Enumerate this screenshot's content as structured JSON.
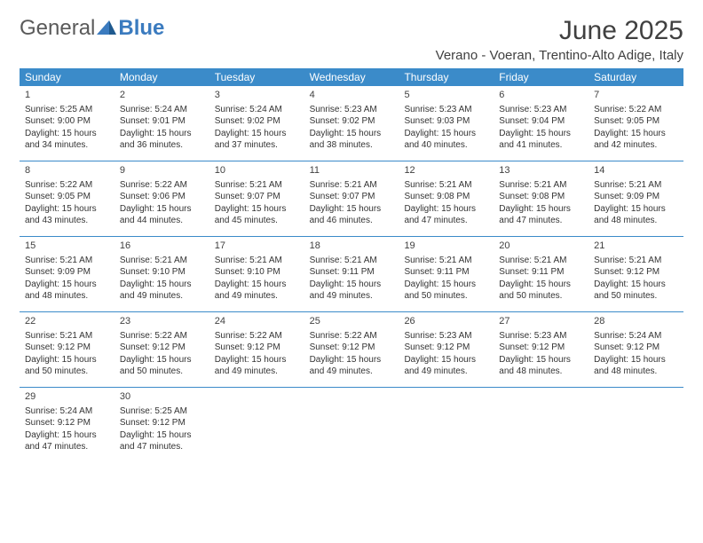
{
  "logo": {
    "general": "General",
    "blue": "Blue"
  },
  "title": "June 2025",
  "location": "Verano - Voeran, Trentino-Alto Adige, Italy",
  "colors": {
    "header_bg": "#3b8bc9",
    "header_text": "#ffffff",
    "week_border": "#3b8bc9",
    "body_text": "#333333",
    "title_text": "#404040",
    "logo_gray": "#5a5a5a",
    "logo_blue": "#3b7bbf",
    "page_bg": "#ffffff"
  },
  "fonts": {
    "title_size": 30,
    "location_size": 15,
    "day_header_size": 12,
    "day_num_size": 11,
    "cell_text_size": 10
  },
  "day_labels": [
    "Sunday",
    "Monday",
    "Tuesday",
    "Wednesday",
    "Thursday",
    "Friday",
    "Saturday"
  ],
  "weeks": [
    [
      {
        "n": "1",
        "sunrise": "Sunrise: 5:25 AM",
        "sunset": "Sunset: 9:00 PM",
        "day1": "Daylight: 15 hours",
        "day2": "and 34 minutes."
      },
      {
        "n": "2",
        "sunrise": "Sunrise: 5:24 AM",
        "sunset": "Sunset: 9:01 PM",
        "day1": "Daylight: 15 hours",
        "day2": "and 36 minutes."
      },
      {
        "n": "3",
        "sunrise": "Sunrise: 5:24 AM",
        "sunset": "Sunset: 9:02 PM",
        "day1": "Daylight: 15 hours",
        "day2": "and 37 minutes."
      },
      {
        "n": "4",
        "sunrise": "Sunrise: 5:23 AM",
        "sunset": "Sunset: 9:02 PM",
        "day1": "Daylight: 15 hours",
        "day2": "and 38 minutes."
      },
      {
        "n": "5",
        "sunrise": "Sunrise: 5:23 AM",
        "sunset": "Sunset: 9:03 PM",
        "day1": "Daylight: 15 hours",
        "day2": "and 40 minutes."
      },
      {
        "n": "6",
        "sunrise": "Sunrise: 5:23 AM",
        "sunset": "Sunset: 9:04 PM",
        "day1": "Daylight: 15 hours",
        "day2": "and 41 minutes."
      },
      {
        "n": "7",
        "sunrise": "Sunrise: 5:22 AM",
        "sunset": "Sunset: 9:05 PM",
        "day1": "Daylight: 15 hours",
        "day2": "and 42 minutes."
      }
    ],
    [
      {
        "n": "8",
        "sunrise": "Sunrise: 5:22 AM",
        "sunset": "Sunset: 9:05 PM",
        "day1": "Daylight: 15 hours",
        "day2": "and 43 minutes."
      },
      {
        "n": "9",
        "sunrise": "Sunrise: 5:22 AM",
        "sunset": "Sunset: 9:06 PM",
        "day1": "Daylight: 15 hours",
        "day2": "and 44 minutes."
      },
      {
        "n": "10",
        "sunrise": "Sunrise: 5:21 AM",
        "sunset": "Sunset: 9:07 PM",
        "day1": "Daylight: 15 hours",
        "day2": "and 45 minutes."
      },
      {
        "n": "11",
        "sunrise": "Sunrise: 5:21 AM",
        "sunset": "Sunset: 9:07 PM",
        "day1": "Daylight: 15 hours",
        "day2": "and 46 minutes."
      },
      {
        "n": "12",
        "sunrise": "Sunrise: 5:21 AM",
        "sunset": "Sunset: 9:08 PM",
        "day1": "Daylight: 15 hours",
        "day2": "and 47 minutes."
      },
      {
        "n": "13",
        "sunrise": "Sunrise: 5:21 AM",
        "sunset": "Sunset: 9:08 PM",
        "day1": "Daylight: 15 hours",
        "day2": "and 47 minutes."
      },
      {
        "n": "14",
        "sunrise": "Sunrise: 5:21 AM",
        "sunset": "Sunset: 9:09 PM",
        "day1": "Daylight: 15 hours",
        "day2": "and 48 minutes."
      }
    ],
    [
      {
        "n": "15",
        "sunrise": "Sunrise: 5:21 AM",
        "sunset": "Sunset: 9:09 PM",
        "day1": "Daylight: 15 hours",
        "day2": "and 48 minutes."
      },
      {
        "n": "16",
        "sunrise": "Sunrise: 5:21 AM",
        "sunset": "Sunset: 9:10 PM",
        "day1": "Daylight: 15 hours",
        "day2": "and 49 minutes."
      },
      {
        "n": "17",
        "sunrise": "Sunrise: 5:21 AM",
        "sunset": "Sunset: 9:10 PM",
        "day1": "Daylight: 15 hours",
        "day2": "and 49 minutes."
      },
      {
        "n": "18",
        "sunrise": "Sunrise: 5:21 AM",
        "sunset": "Sunset: 9:11 PM",
        "day1": "Daylight: 15 hours",
        "day2": "and 49 minutes."
      },
      {
        "n": "19",
        "sunrise": "Sunrise: 5:21 AM",
        "sunset": "Sunset: 9:11 PM",
        "day1": "Daylight: 15 hours",
        "day2": "and 50 minutes."
      },
      {
        "n": "20",
        "sunrise": "Sunrise: 5:21 AM",
        "sunset": "Sunset: 9:11 PM",
        "day1": "Daylight: 15 hours",
        "day2": "and 50 minutes."
      },
      {
        "n": "21",
        "sunrise": "Sunrise: 5:21 AM",
        "sunset": "Sunset: 9:12 PM",
        "day1": "Daylight: 15 hours",
        "day2": "and 50 minutes."
      }
    ],
    [
      {
        "n": "22",
        "sunrise": "Sunrise: 5:21 AM",
        "sunset": "Sunset: 9:12 PM",
        "day1": "Daylight: 15 hours",
        "day2": "and 50 minutes."
      },
      {
        "n": "23",
        "sunrise": "Sunrise: 5:22 AM",
        "sunset": "Sunset: 9:12 PM",
        "day1": "Daylight: 15 hours",
        "day2": "and 50 minutes."
      },
      {
        "n": "24",
        "sunrise": "Sunrise: 5:22 AM",
        "sunset": "Sunset: 9:12 PM",
        "day1": "Daylight: 15 hours",
        "day2": "and 49 minutes."
      },
      {
        "n": "25",
        "sunrise": "Sunrise: 5:22 AM",
        "sunset": "Sunset: 9:12 PM",
        "day1": "Daylight: 15 hours",
        "day2": "and 49 minutes."
      },
      {
        "n": "26",
        "sunrise": "Sunrise: 5:23 AM",
        "sunset": "Sunset: 9:12 PM",
        "day1": "Daylight: 15 hours",
        "day2": "and 49 minutes."
      },
      {
        "n": "27",
        "sunrise": "Sunrise: 5:23 AM",
        "sunset": "Sunset: 9:12 PM",
        "day1": "Daylight: 15 hours",
        "day2": "and 48 minutes."
      },
      {
        "n": "28",
        "sunrise": "Sunrise: 5:24 AM",
        "sunset": "Sunset: 9:12 PM",
        "day1": "Daylight: 15 hours",
        "day2": "and 48 minutes."
      }
    ],
    [
      {
        "n": "29",
        "sunrise": "Sunrise: 5:24 AM",
        "sunset": "Sunset: 9:12 PM",
        "day1": "Daylight: 15 hours",
        "day2": "and 47 minutes."
      },
      {
        "n": "30",
        "sunrise": "Sunrise: 5:25 AM",
        "sunset": "Sunset: 9:12 PM",
        "day1": "Daylight: 15 hours",
        "day2": "and 47 minutes."
      },
      {
        "empty": true
      },
      {
        "empty": true
      },
      {
        "empty": true
      },
      {
        "empty": true
      },
      {
        "empty": true
      }
    ]
  ]
}
